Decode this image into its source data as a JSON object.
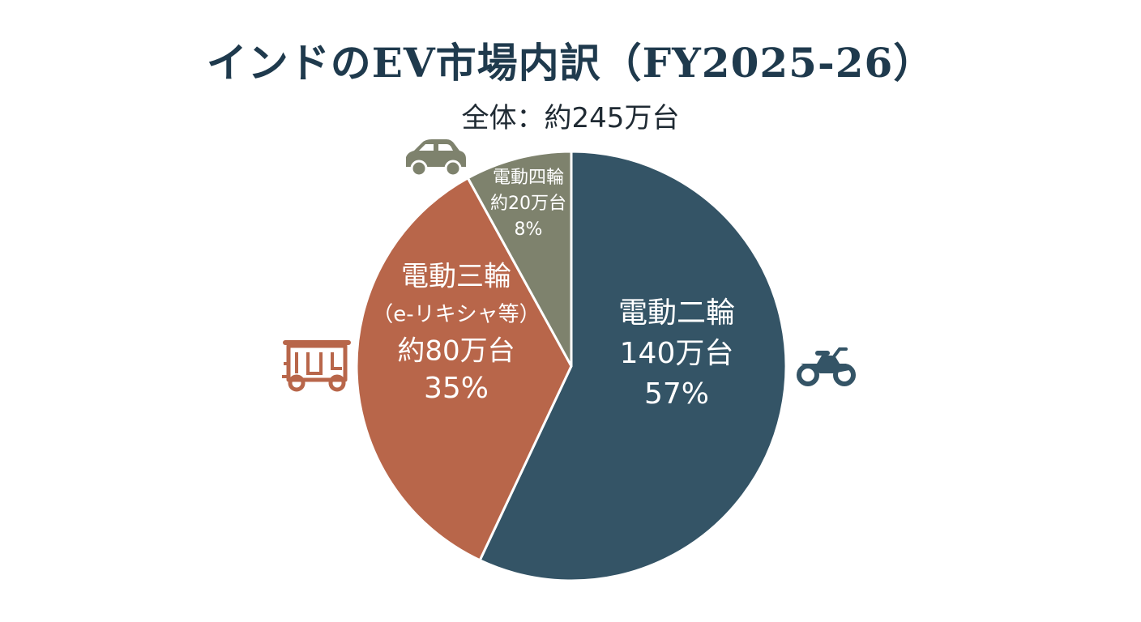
{
  "chart_data": {
    "type": "pie",
    "title": "インドのEV市場内訳（FY2025-26）",
    "subtitle": "全体：約245万台",
    "unit": "万台",
    "slices": [
      {
        "category": "電動二輪",
        "subcategory": "",
        "value_text": "140万台",
        "value": 140,
        "percent": 57,
        "percent_text": "57%",
        "color": "#345466",
        "icon": "motorcycle-icon"
      },
      {
        "category": "電動三輪",
        "subcategory": "（e-リキシャ等）",
        "value_text": "約80万台",
        "value": 80,
        "percent": 35,
        "percent_text": "35%",
        "color": "#b8664a",
        "icon": "auto-rickshaw-icon"
      },
      {
        "category": "電動四輪",
        "subcategory": "",
        "value_text": "約20万台",
        "value": 20,
        "percent": 8,
        "percent_text": "8%",
        "color": "#7e826d",
        "icon": "car-icon"
      }
    ],
    "legend": "none"
  }
}
